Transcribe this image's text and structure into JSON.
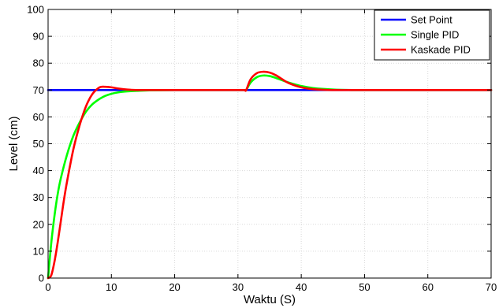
{
  "chart_data": {
    "type": "line",
    "title": "",
    "xlabel": "Waktu (S)",
    "ylabel": "Level (cm)",
    "xlim": [
      0,
      70
    ],
    "ylim": [
      0,
      100
    ],
    "xticks": [
      0,
      10,
      20,
      30,
      40,
      50,
      60,
      70
    ],
    "yticks": [
      0,
      10,
      20,
      30,
      40,
      50,
      60,
      70,
      80,
      90,
      100
    ],
    "grid": true,
    "legend_position": "top-right",
    "series": [
      {
        "name": "Set Point",
        "color": "#0000ff",
        "x": [
          0,
          70
        ],
        "y": [
          70,
          70
        ]
      },
      {
        "name": "Single PID",
        "color": "#00ff00",
        "x": [
          0,
          0.5,
          1,
          1.5,
          2,
          3,
          4,
          5,
          6,
          7,
          8,
          9,
          10,
          11,
          12,
          14,
          16,
          20,
          25,
          30,
          31,
          31.3,
          32,
          33,
          34,
          35,
          36,
          38,
          40,
          42,
          45,
          48,
          50,
          60,
          70
        ],
        "y": [
          0,
          13,
          23,
          31,
          37,
          46,
          53,
          58,
          62,
          64.7,
          66.5,
          67.8,
          68.6,
          69.1,
          69.4,
          69.7,
          69.9,
          70,
          70,
          70,
          70,
          70,
          72.8,
          74.8,
          75.4,
          75.2,
          74.5,
          72.8,
          71.5,
          70.7,
          70.2,
          70,
          70,
          70,
          70
        ]
      },
      {
        "name": "Kaskade PID",
        "color": "#ff0000",
        "x": [
          0,
          0.5,
          1,
          1.5,
          2,
          2.5,
          3,
          4,
          5,
          6,
          7,
          8,
          8.5,
          9,
          10,
          11,
          12,
          13,
          14,
          16,
          20,
          25,
          30,
          31,
          31.3,
          32,
          33,
          34,
          35,
          36,
          37,
          38,
          40,
          42,
          45,
          50,
          60,
          70
        ],
        "y": [
          0,
          1,
          6,
          13,
          21,
          29,
          36,
          48,
          57,
          64,
          68.5,
          70.8,
          71.2,
          71.2,
          71,
          70.6,
          70.3,
          70.1,
          70,
          70,
          70,
          70,
          70,
          70,
          70,
          74,
          76.3,
          76.8,
          76.5,
          75.5,
          74,
          72.6,
          71,
          70.3,
          70,
          70,
          70,
          70
        ]
      }
    ]
  }
}
